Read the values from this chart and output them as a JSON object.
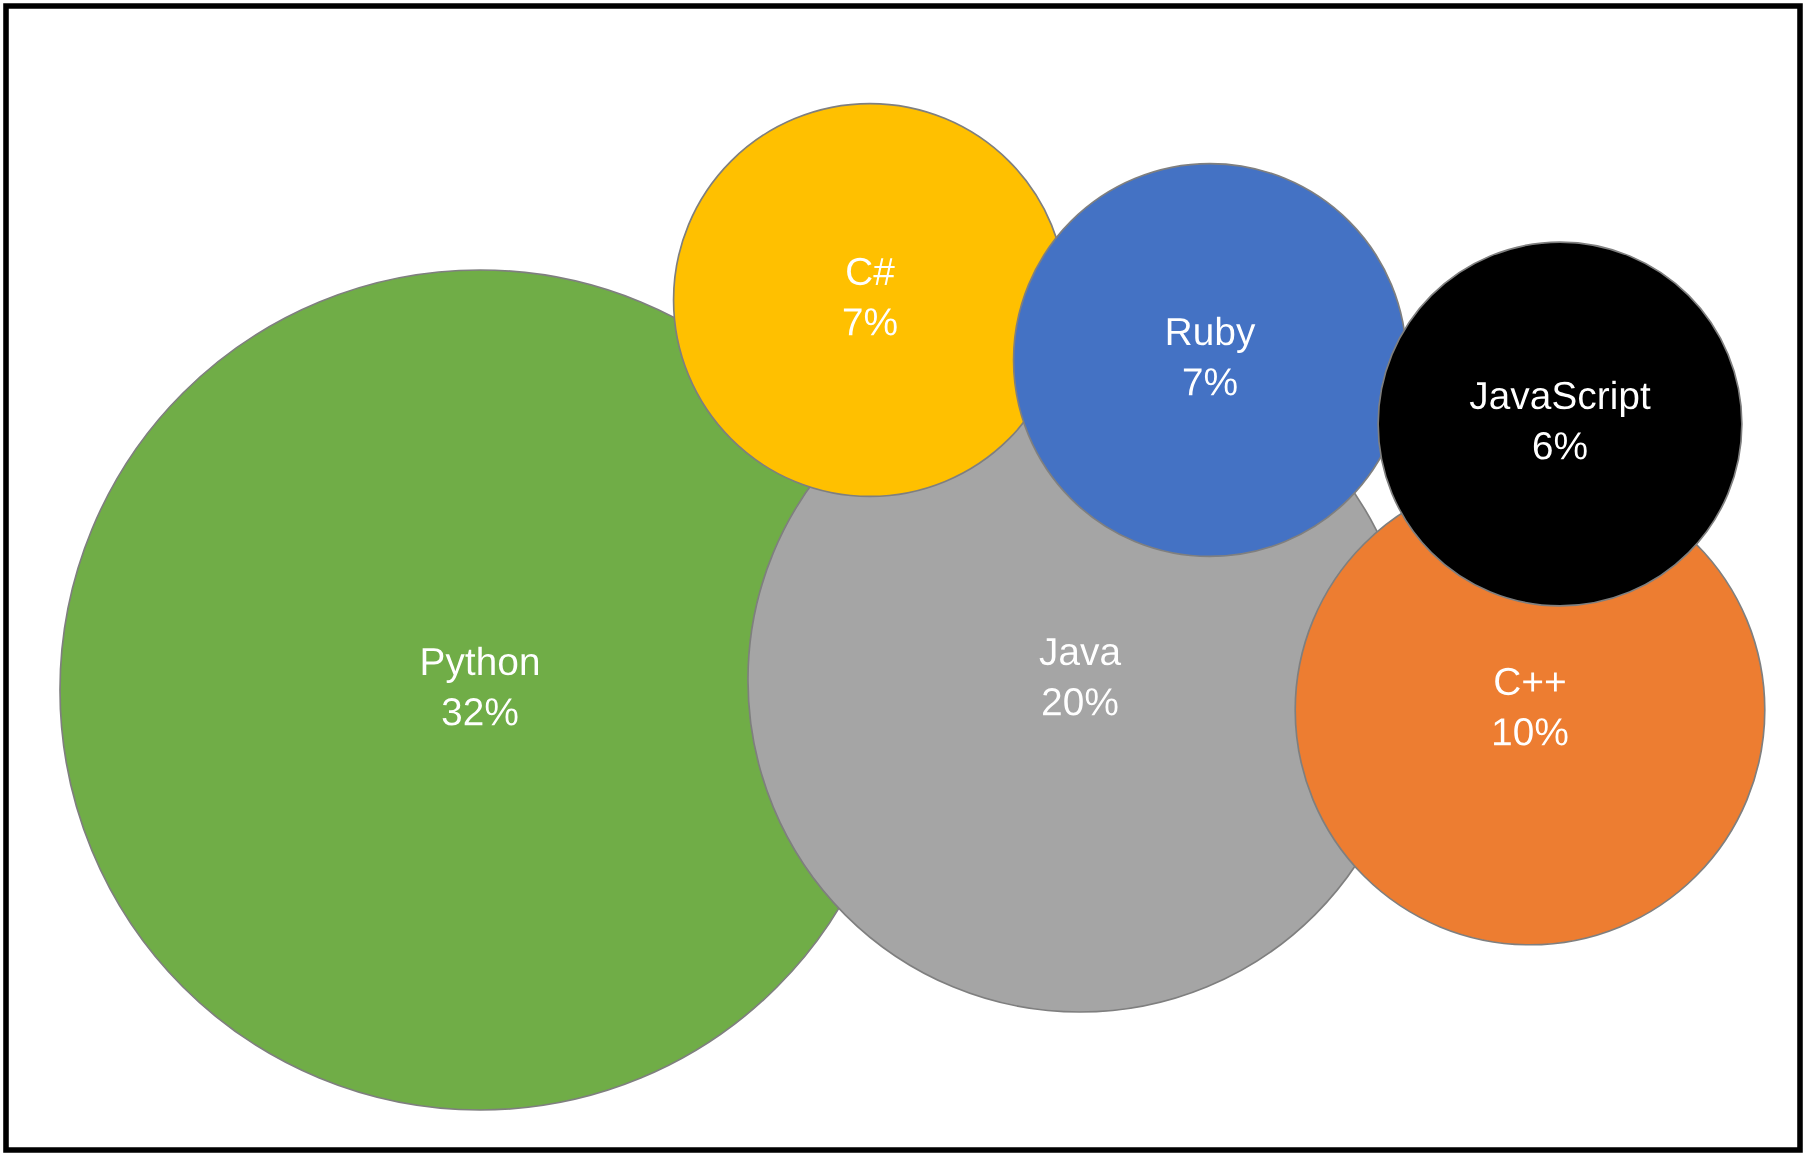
{
  "chart_data": {
    "type": "other",
    "categories": [
      "Python",
      "Java",
      "C#",
      "Ruby",
      "C++",
      "JavaScript"
    ],
    "values": [
      32,
      20,
      7,
      7,
      10,
      6
    ],
    "value_labels": [
      "32%",
      "20%",
      "7%",
      "7%",
      "10%",
      "6%"
    ],
    "colors": [
      "#70ad47",
      "#a5a5a5",
      "#ffc000",
      "#4472c4",
      "#ed7d31",
      "#000000"
    ]
  }
}
